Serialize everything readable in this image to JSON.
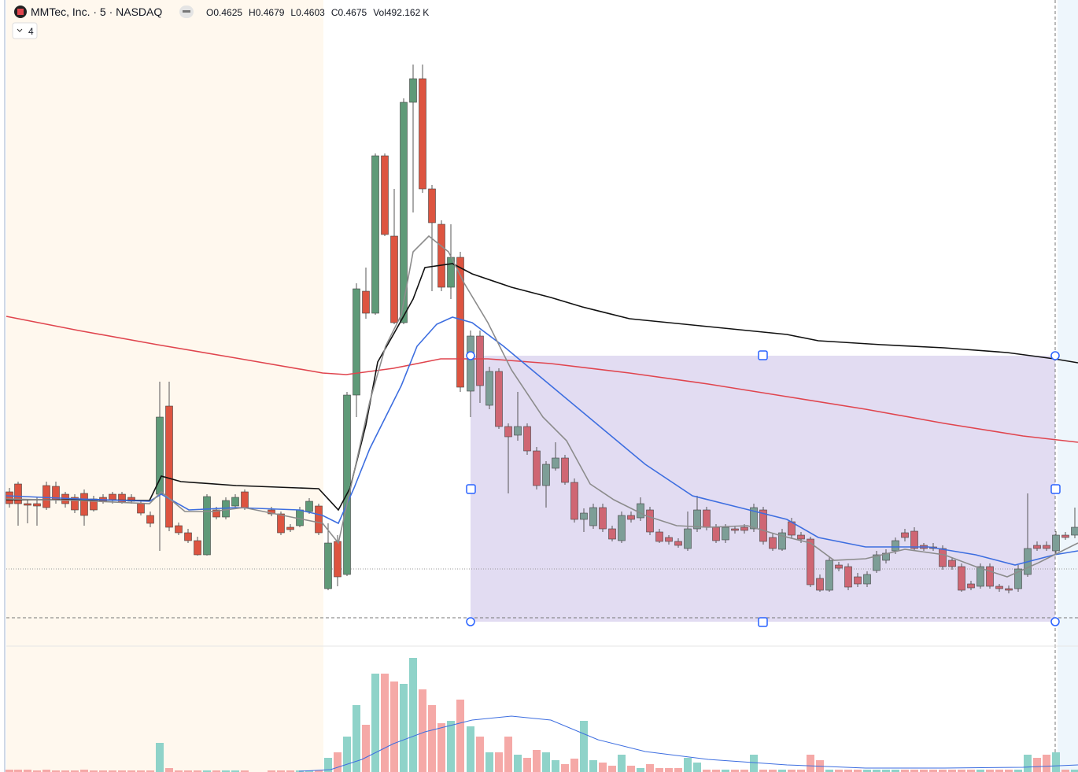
{
  "header": {
    "symbol": "MMTec, Inc. · 5 · NASDAQ",
    "open_label": "O",
    "open": 0.4625,
    "high_label": "H",
    "high": 0.4679,
    "low_label": "L",
    "low": 0.4603,
    "close_label": "C",
    "close": 0.4675,
    "volume_label": "Vol",
    "volume": 492.162,
    "volume_unit": "K"
  },
  "indicator_count": 4
}
